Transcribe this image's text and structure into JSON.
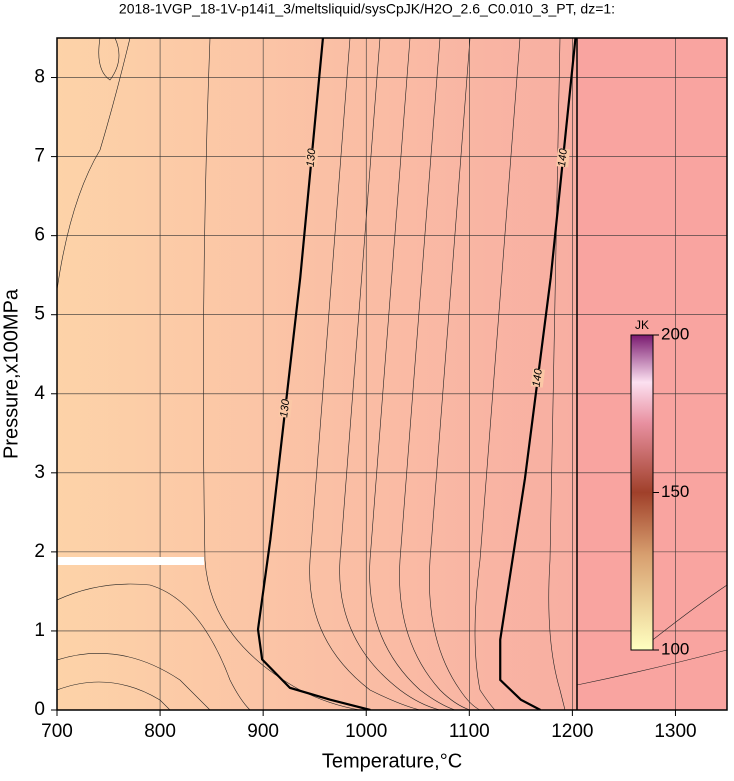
{
  "chart_data": {
    "type": "contour",
    "title": "2018-1VGP_18-1V-p14i1_3/meltsliquid/sysCpJK/H2O_2.6_C0.010_3_PT, dz=1:",
    "x_label": "Temperature,°C",
    "y_label": "Pressure,x100MPa",
    "xlim": [
      700,
      1350
    ],
    "ylim": [
      0,
      8.5
    ],
    "xticks": [
      700,
      800,
      900,
      1000,
      1100,
      1200,
      1300
    ],
    "yticks": [
      0,
      1,
      2,
      3,
      4,
      5,
      6,
      7,
      8
    ],
    "grid": true,
    "contours": [
      {
        "level": 130,
        "color": "#000000",
        "x": [
          958,
          936,
          907,
          895,
          899,
          926,
          965,
          1004
        ],
        "y": [
          8.5,
          5.47,
          2.16,
          1.02,
          0.64,
          0.28,
          0.13,
          0
        ]
      },
      {
        "level": 140,
        "color": "#000000",
        "x": [
          1203,
          1179,
          1154,
          1130,
          1130,
          1150,
          1169
        ],
        "y": [
          8.5,
          5.47,
          2.93,
          0.89,
          0.38,
          0.13,
          0
        ]
      }
    ],
    "colorbar": {
      "label": "JK",
      "lim": [
        100,
        200
      ],
      "ticks": [
        100,
        150,
        200
      ]
    }
  }
}
